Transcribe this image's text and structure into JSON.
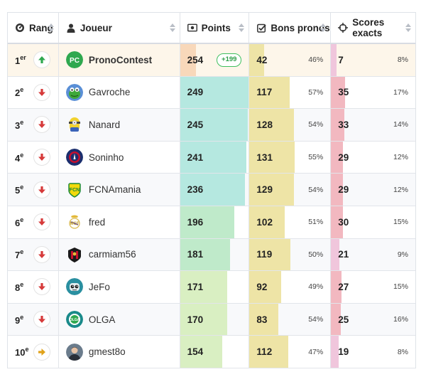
{
  "header": {
    "rank": "Rang",
    "player": "Joueur",
    "points": "Points",
    "bons": "Bons pronos",
    "scores": "Scores exacts"
  },
  "rows": [
    {
      "rank": "1",
      "sup": "er",
      "trend": "up",
      "name": "PronoContest",
      "avatar": "pc-logo",
      "points": 254,
      "points_badge": "+199",
      "bons": 42,
      "bons_pct": "46%",
      "scores": 7,
      "scores_pct": "8%"
    },
    {
      "rank": "2",
      "sup": "e",
      "trend": "down",
      "name": "Gavroche",
      "avatar": "kermit-avatar",
      "points": 249,
      "bons": 117,
      "bons_pct": "57%",
      "scores": 35,
      "scores_pct": "17%"
    },
    {
      "rank": "3",
      "sup": "e",
      "trend": "down",
      "name": "Nanard",
      "avatar": "minion-avatar",
      "points": 245,
      "bons": 128,
      "bons_pct": "54%",
      "scores": 33,
      "scores_pct": "14%"
    },
    {
      "rank": "4",
      "sup": "e",
      "trend": "down",
      "name": "Soninho",
      "avatar": "psg-avatar",
      "points": 241,
      "bons": 131,
      "bons_pct": "55%",
      "scores": 29,
      "scores_pct": "12%"
    },
    {
      "rank": "5",
      "sup": "e",
      "trend": "down",
      "name": "FCNAmania",
      "avatar": "fcn-avatar",
      "points": 236,
      "bons": 129,
      "bons_pct": "54%",
      "scores": 29,
      "scores_pct": "12%"
    },
    {
      "rank": "6",
      "sup": "e",
      "trend": "down",
      "name": "fred",
      "avatar": "real-madrid-avatar",
      "points": 196,
      "bons": 102,
      "bons_pct": "51%",
      "scores": 30,
      "scores_pct": "15%"
    },
    {
      "rank": "7",
      "sup": "e",
      "trend": "down",
      "name": "carmiam56",
      "avatar": "nice-avatar",
      "points": 181,
      "bons": 119,
      "bons_pct": "50%",
      "scores": 21,
      "scores_pct": "9%"
    },
    {
      "rank": "8",
      "sup": "e",
      "trend": "down",
      "name": "JeFo",
      "avatar": "robot-avatar",
      "points": 171,
      "bons": 92,
      "bons_pct": "49%",
      "scores": 27,
      "scores_pct": "15%"
    },
    {
      "rank": "9",
      "sup": "e",
      "trend": "down",
      "name": "OLGA",
      "avatar": "olga-avatar",
      "points": 170,
      "bons": 83,
      "bons_pct": "54%",
      "scores": 25,
      "scores_pct": "16%"
    },
    {
      "rank": "10",
      "sup": "e",
      "trend": "right",
      "name": "gmest8o",
      "avatar": "photo-avatar",
      "points": 154,
      "bons": 112,
      "bons_pct": "47%",
      "scores": 19,
      "scores_pct": "8%"
    }
  ],
  "colors": {
    "trend_up": "#2fa84f",
    "trend_down": "#d63a3a",
    "trend_right": "#e0a21a",
    "points_bar_first": "#f8d8ba",
    "points_bar_top": "#b5e8e0",
    "points_bar_mid": "#bfeaca",
    "points_bar_low": "#d9efc2",
    "bons_bar": "#eee4a6",
    "scores_bar": "#f2b8c0",
    "scores_bar_low": "#f0c6dc"
  }
}
